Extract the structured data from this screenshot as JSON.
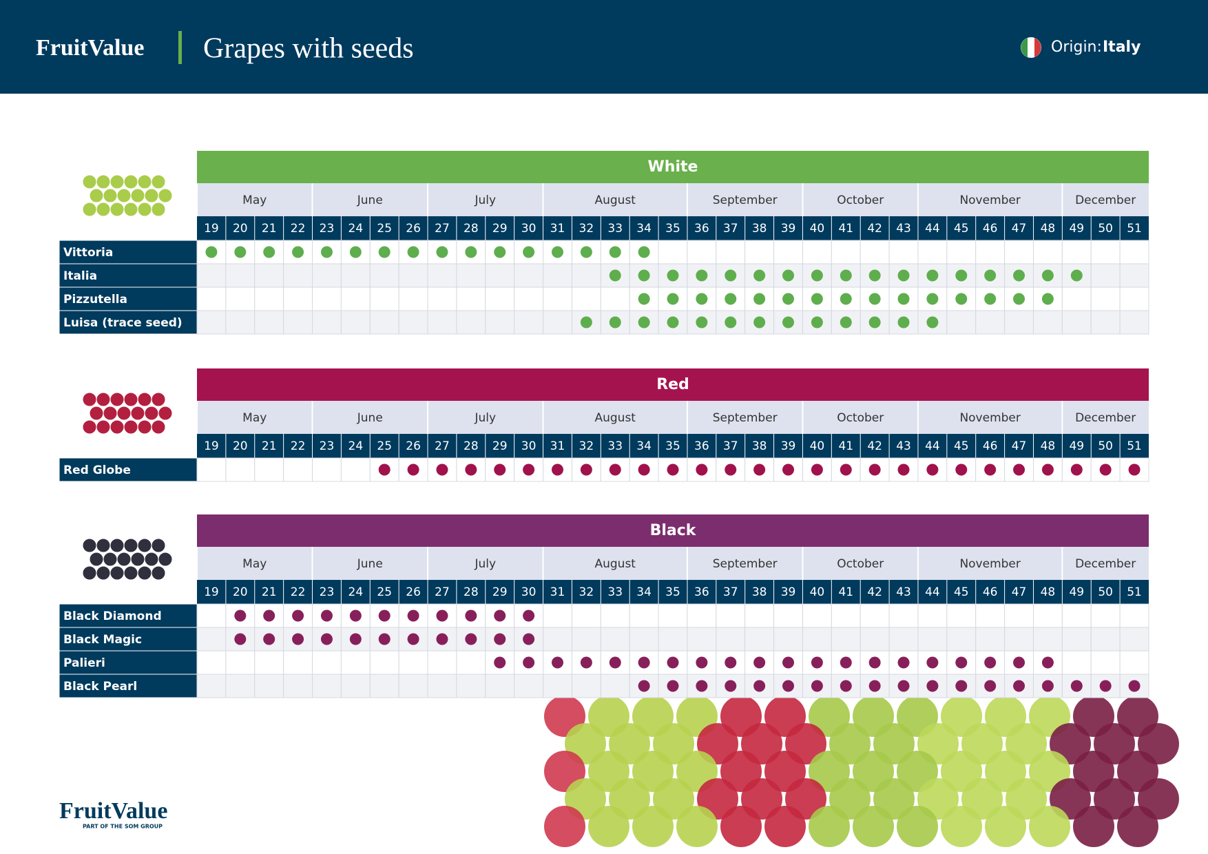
{
  "header": {
    "brand": "FruitValue",
    "title": "Grapes with seeds",
    "origin_label": "Origin:",
    "origin_value": "Italy"
  },
  "months": [
    "May",
    "June",
    "July",
    "August",
    "September",
    "October",
    "November",
    "December"
  ],
  "weeks": [
    19,
    20,
    21,
    22,
    23,
    24,
    25,
    26,
    27,
    28,
    29,
    30,
    31,
    32,
    33,
    34,
    35,
    36,
    37,
    38,
    39,
    40,
    41,
    42,
    43,
    44,
    45,
    46,
    47,
    48,
    49,
    50,
    51
  ],
  "groups": [
    {
      "title": "White",
      "color": "#6ab04c",
      "dot_color": "#5fae4e",
      "varieties": [
        {
          "name": "Vittoria",
          "from": 19,
          "to": 34
        },
        {
          "name": "Italia",
          "from": 33,
          "to": 49
        },
        {
          "name": "Pizzutella",
          "from": 34,
          "to": 48
        },
        {
          "name": "Luisa (trace seed)",
          "from": 32,
          "to": 44
        }
      ]
    },
    {
      "title": "Red",
      "color": "#a5134f",
      "dot_color": "#a0124c",
      "varieties": [
        {
          "name": "Red Globe",
          "from": 25,
          "to": 51
        }
      ]
    },
    {
      "title": "Black",
      "color": "#7c2d6e",
      "dot_color": "#87205a",
      "varieties": [
        {
          "name": "Black Diamond",
          "from": 20,
          "to": 30
        },
        {
          "name": "Black Magic",
          "from": 20,
          "to": 30
        },
        {
          "name": "Palieri",
          "from": 29,
          "to": 48
        },
        {
          "name": "Black Pearl",
          "from": 34,
          "to": 51
        }
      ]
    }
  ],
  "footer": {
    "brand": "FruitValue",
    "tagline": "PART OF THE SOM GROUP"
  }
}
